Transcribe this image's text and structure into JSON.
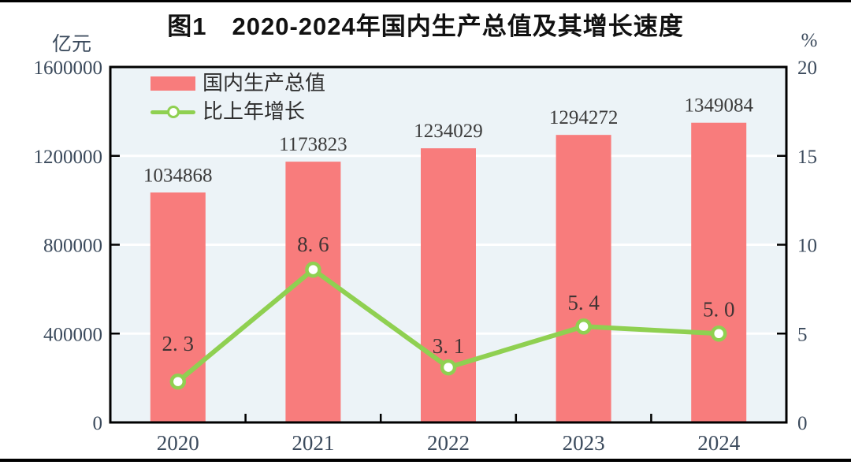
{
  "figure": {
    "title": "图1　2020-2024年国内生产总值及其增长速度",
    "left_axis_unit": "亿元",
    "right_axis_unit": "%"
  },
  "legend": {
    "bar_label": "国内生产总值",
    "line_label": "比上年增长"
  },
  "colors": {
    "bar": "#F87C7C",
    "line": "#8FD051",
    "marker_fill": "#FFFFFF",
    "plot_bg": "#ECF3F7",
    "gridline": "#FFFFFF",
    "plot_border": "#000000",
    "axis_text": "#3B4A5C",
    "bar_value_text": "#3C3C3C",
    "growth_value_text": "#403434",
    "title_text": "#111111"
  },
  "chart_data": {
    "type": "bar+line combo",
    "title": "图1　2020-2024年国内生产总值及其增长速度",
    "categories": [
      "2020",
      "2021",
      "2022",
      "2023",
      "2024"
    ],
    "series": [
      {
        "name": "国内生产总值",
        "type": "bar",
        "axis": "left",
        "values": [
          1034868,
          1173823,
          1234029,
          1294272,
          1349084
        ]
      },
      {
        "name": "比上年增长",
        "type": "line",
        "axis": "right",
        "values": [
          2.3,
          8.6,
          3.1,
          5.4,
          5.0
        ]
      }
    ],
    "bar_value_labels": [
      "1034868",
      "1173823",
      "1234029",
      "1294272",
      "1349084"
    ],
    "growth_value_labels": [
      "2. 3",
      "8. 6",
      "3. 1",
      "5. 4",
      "5. 0"
    ],
    "left_axis": {
      "unit": "亿元",
      "min": 0,
      "max": 1600000,
      "step": 400000,
      "tick_labels": [
        "1600000",
        "1200000",
        "800000",
        "400000",
        "0"
      ]
    },
    "right_axis": {
      "unit": "%",
      "min": 0,
      "max": 20,
      "step": 5,
      "tick_labels": [
        "20",
        "15",
        "10",
        "5",
        "0"
      ]
    },
    "grid": "horizontal white gridlines at left-axis steps",
    "legend_position": "top-left inside plot"
  }
}
